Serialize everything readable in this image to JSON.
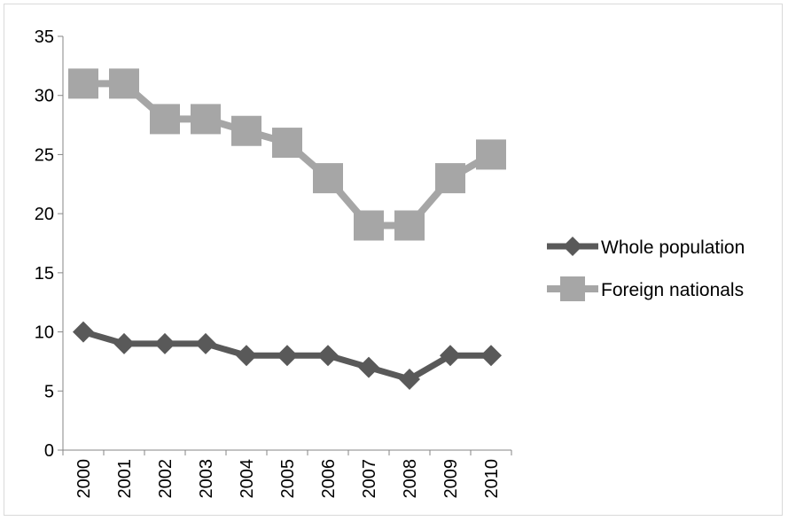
{
  "chart_data": {
    "type": "line",
    "title": "",
    "xlabel": "",
    "ylabel": "",
    "categories": [
      "2000",
      "2001",
      "2002",
      "2003",
      "2004",
      "2005",
      "2006",
      "2007",
      "2008",
      "2009",
      "2010"
    ],
    "ylim": [
      0,
      35
    ],
    "yticks": [
      "0",
      "5",
      "10",
      "15",
      "20",
      "25",
      "30",
      "35"
    ],
    "grid": false,
    "legend_position": "right",
    "series": [
      {
        "name": "Whole population",
        "values": [
          10,
          9,
          9,
          9,
          8,
          8,
          8,
          7,
          6,
          8,
          8
        ],
        "color": "#595959",
        "marker": "diamond"
      },
      {
        "name": "Foreign nationals",
        "values": [
          31,
          31,
          28,
          28,
          27,
          26,
          23,
          19,
          19,
          23,
          25
        ],
        "color": "#a6a6a6",
        "marker": "square"
      }
    ]
  }
}
